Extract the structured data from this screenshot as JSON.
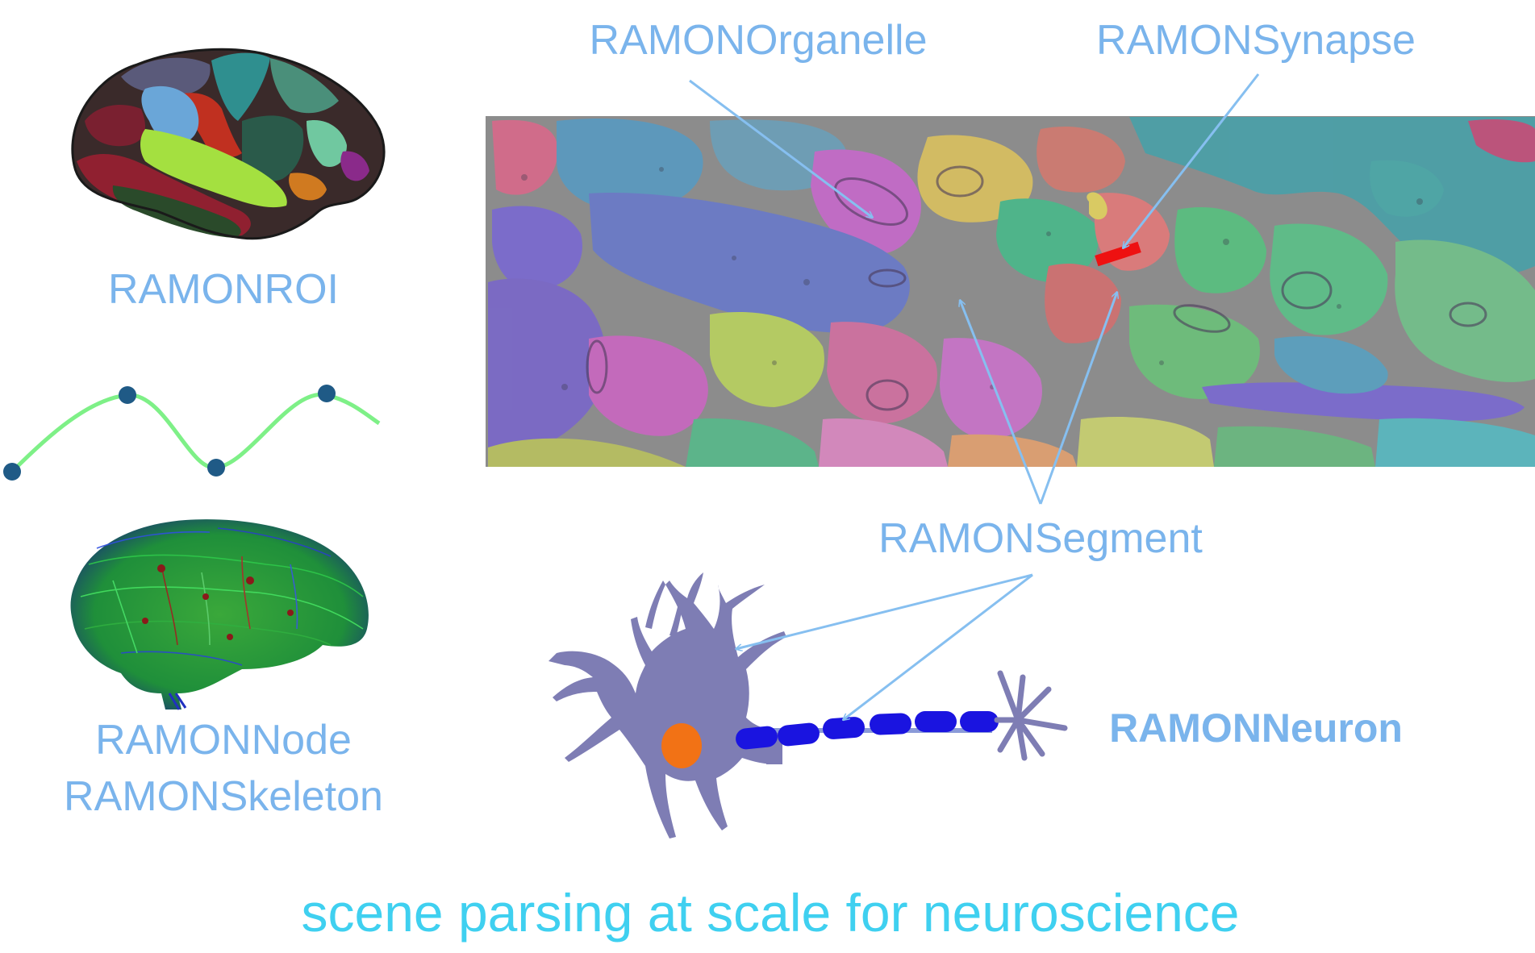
{
  "labels": {
    "roi": "RAMONROI",
    "node": "RAMONNode",
    "skeleton": "RAMONSkeleton",
    "organelle": "RAMONOrganelle",
    "synapse": "RAMONSynapse",
    "segment": "RAMONSegment",
    "neuron": "RAMONNeuron",
    "caption": "scene parsing at scale for neuroscience"
  },
  "colors": {
    "label_blue": "#7ab4ec",
    "caption_cyan": "#3fd0f0",
    "arrow_blue": "#86bff0",
    "curve_green": "#7ef087",
    "node_dot": "#1f5a86",
    "neuron_body": "#7e7db4",
    "nucleus": "#f27215",
    "axon_myelin": "#1a14e0",
    "synapse_red": "#ee1111"
  },
  "icons": {
    "brain_parcellation": "brain-parcellation-icon",
    "skeleton_curve": "skeleton-curve-icon",
    "tractography_brain": "tractography-brain-icon",
    "em_segmentation": "em-segmentation-image",
    "neuron": "neuron-icon"
  }
}
